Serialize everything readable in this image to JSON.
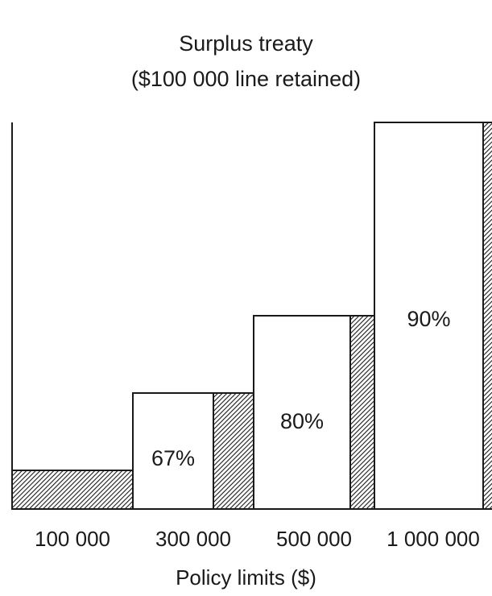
{
  "chart_data": {
    "type": "bar",
    "title": "Surplus treaty",
    "subtitle": "($100 000 line retained)",
    "xlabel": "Policy limits ($)",
    "ylabel": "",
    "categories": [
      "100 000",
      "300 000",
      "500 000",
      "1 000 000"
    ],
    "series": [
      {
        "values": [
          100000,
          300000,
          500000,
          1000000
        ]
      }
    ],
    "retained": [
      100000,
      100000,
      100000,
      100000
    ],
    "ceded_labels": [
      "",
      "67%",
      "80%",
      "90%"
    ],
    "ceded_fraction": [
      0,
      0.67,
      0.8,
      0.9
    ],
    "ylim": [
      0,
      1000000
    ],
    "grid": false,
    "legend": "none"
  },
  "colors": {
    "ink": "#1a1a1a",
    "ceded_fill": "#ffffff",
    "retained_hatch": "#1a1a1a"
  }
}
